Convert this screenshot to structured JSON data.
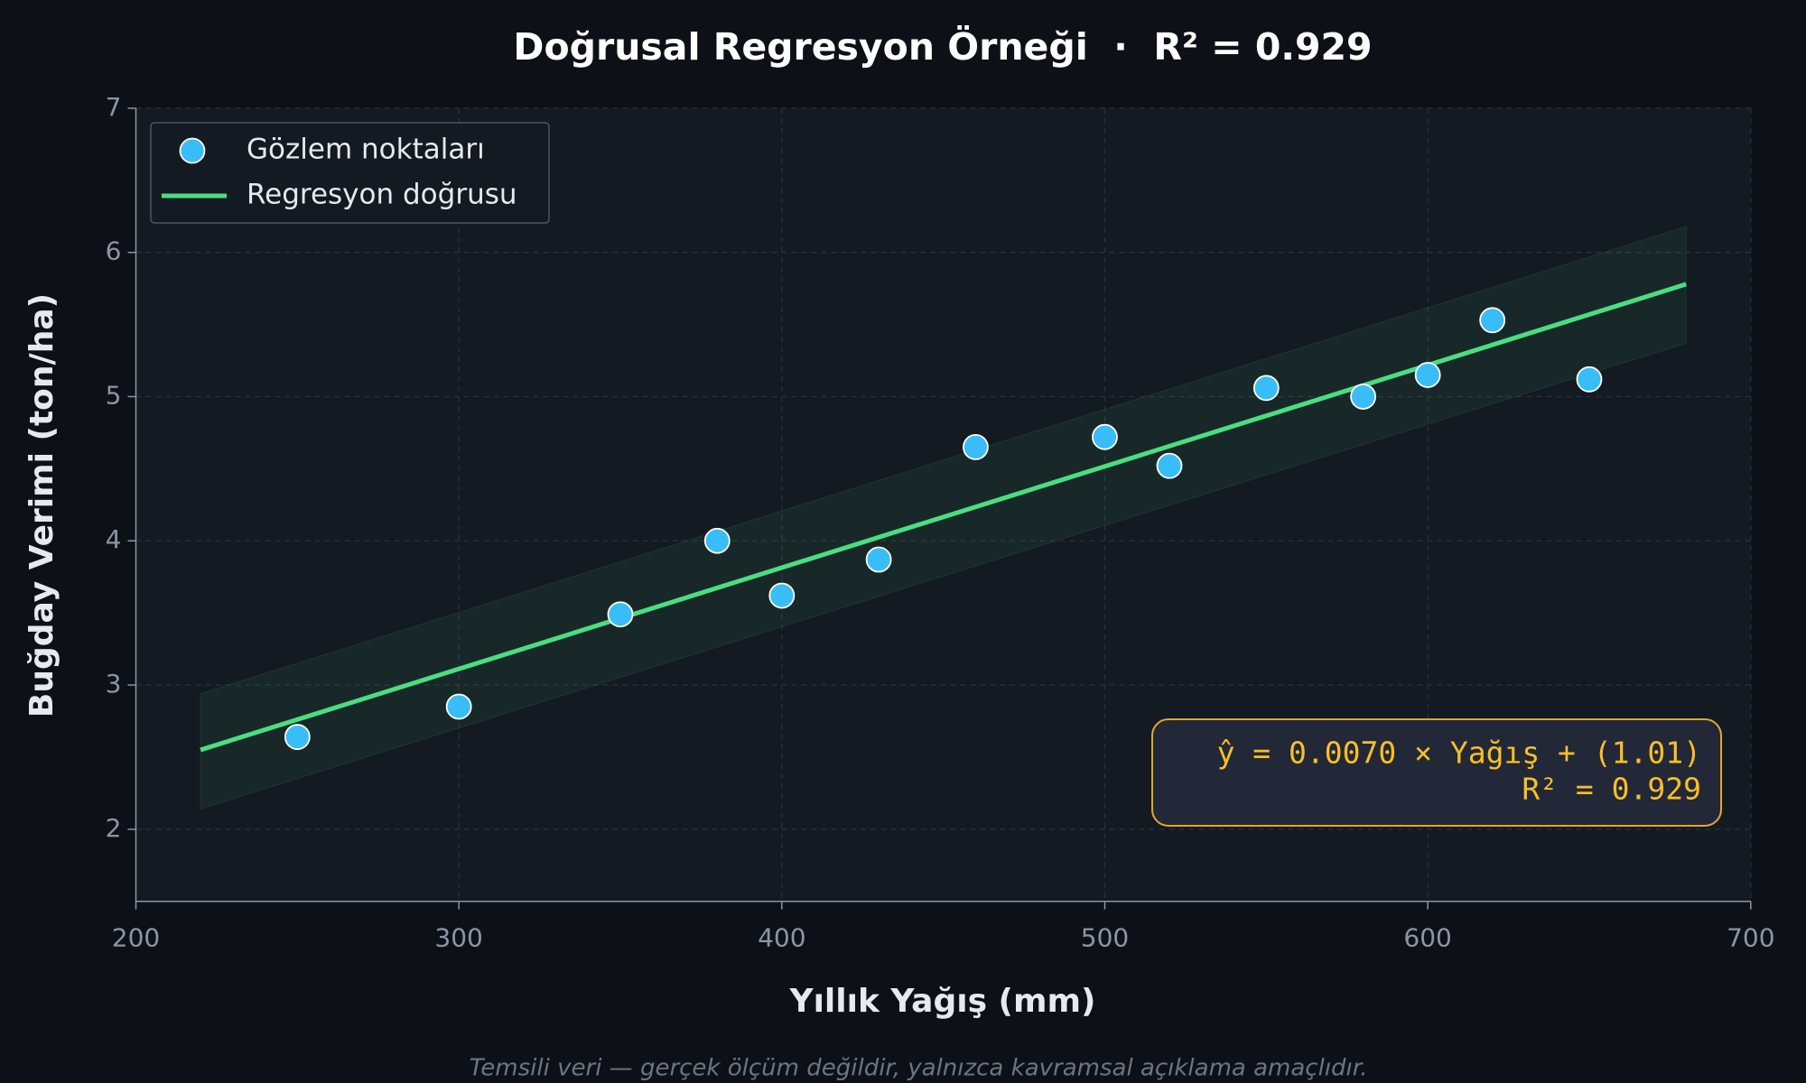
{
  "chart_data": {
    "type": "scatter",
    "title": "Doğrusal Regresyon Örneği  ·  R² = 0.929",
    "x_label": "Yıllık Yağış (mm)",
    "y_label": "Buğday Verimi (ton/ha)",
    "footnote": "Temsili veri — gerçek ölçüm değildir, yalnızca kavramsal açıklama amaçlıdır.",
    "annotations": [
      "ŷ = 0.0070 × Yağış + (1.01)",
      "R² = 0.929"
    ],
    "xlim": [
      200,
      700
    ],
    "xticks": [
      200,
      300,
      400,
      500,
      600,
      700
    ],
    "ylim": [
      1.5,
      7
    ],
    "yticks": [
      2,
      3,
      4,
      5,
      6,
      7
    ],
    "grid": true,
    "legend": "upper left",
    "series": [
      {
        "name": "Gözlem noktaları",
        "color": "#38bdf8",
        "x": [
          250,
          300,
          350,
          380,
          400,
          430,
          460,
          500,
          520,
          550,
          580,
          600,
          620,
          650
        ],
        "values": [
          2.64,
          2.85,
          3.49,
          4.0,
          3.62,
          3.87,
          4.65,
          4.72,
          4.52,
          5.06,
          5.0,
          5.15,
          5.53,
          5.12
        ]
      },
      {
        "name": "Regresyon doğrusu",
        "color": "#4ade80",
        "x": [
          220,
          680
        ],
        "values": [
          2.55,
          5.78
        ]
      }
    ],
    "band": {
      "color": "#4ade80",
      "x": [
        220,
        680
      ],
      "lower": [
        2.14,
        5.37
      ],
      "upper": [
        2.94,
        6.18
      ]
    }
  }
}
